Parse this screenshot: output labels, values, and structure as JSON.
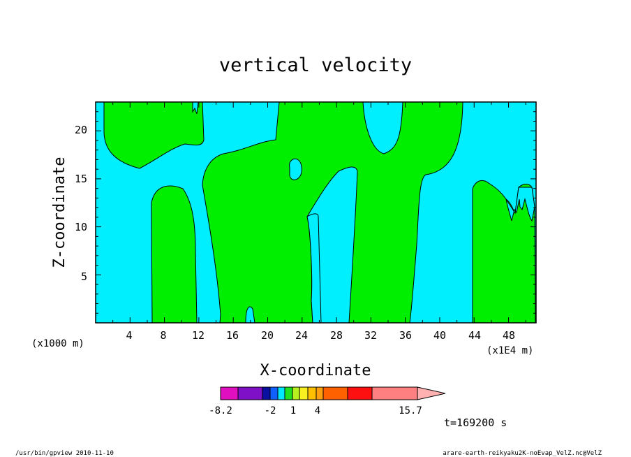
{
  "chart_data": {
    "type": "heatmap",
    "title": "vertical velocity",
    "xlabel": "X-coordinate",
    "ylabel": "Z-coordinate",
    "x_unit_label": "(x1000 m)",
    "x_unit_label_right": "(x1E4 m)",
    "xlim": [
      0,
      51.2
    ],
    "ylim": [
      0,
      23
    ],
    "x_ticks": [
      "4",
      "8",
      "12",
      "16",
      "20",
      "24",
      "28",
      "32",
      "36",
      "40",
      "44",
      "48"
    ],
    "y_ticks": [
      "5",
      "10",
      "15",
      "20"
    ],
    "time_label": "t=169200 s",
    "colorbar_labels": [
      "-8.2",
      "-2",
      "1",
      "4",
      "15.7"
    ],
    "colorbar_colors": [
      "#e010c0",
      "#8010c8",
      "#0a10a0",
      "#1060ff",
      "#00e8ff",
      "#20e020",
      "#b8f020",
      "#f8f020",
      "#ffc000",
      "#ffa010",
      "#ff6000",
      "#ff1010",
      "#ff8080",
      "#ffb0b0"
    ],
    "negative_region_color": "#00efff",
    "positive_region_color": "#00ee00",
    "updraft_columns_x_ranges": [
      [
        0.8,
        12
      ],
      [
        6.5,
        11
      ],
      [
        14.5,
        25
      ],
      [
        18.5,
        30
      ],
      [
        29.5,
        37
      ],
      [
        43.5,
        51.2
      ]
    ]
  },
  "footer": {
    "left": "/usr/bin/gpview  2010-11-10",
    "right": "arare-earth-reikyaku2K-noEvap_VelZ.nc@VelZ"
  }
}
